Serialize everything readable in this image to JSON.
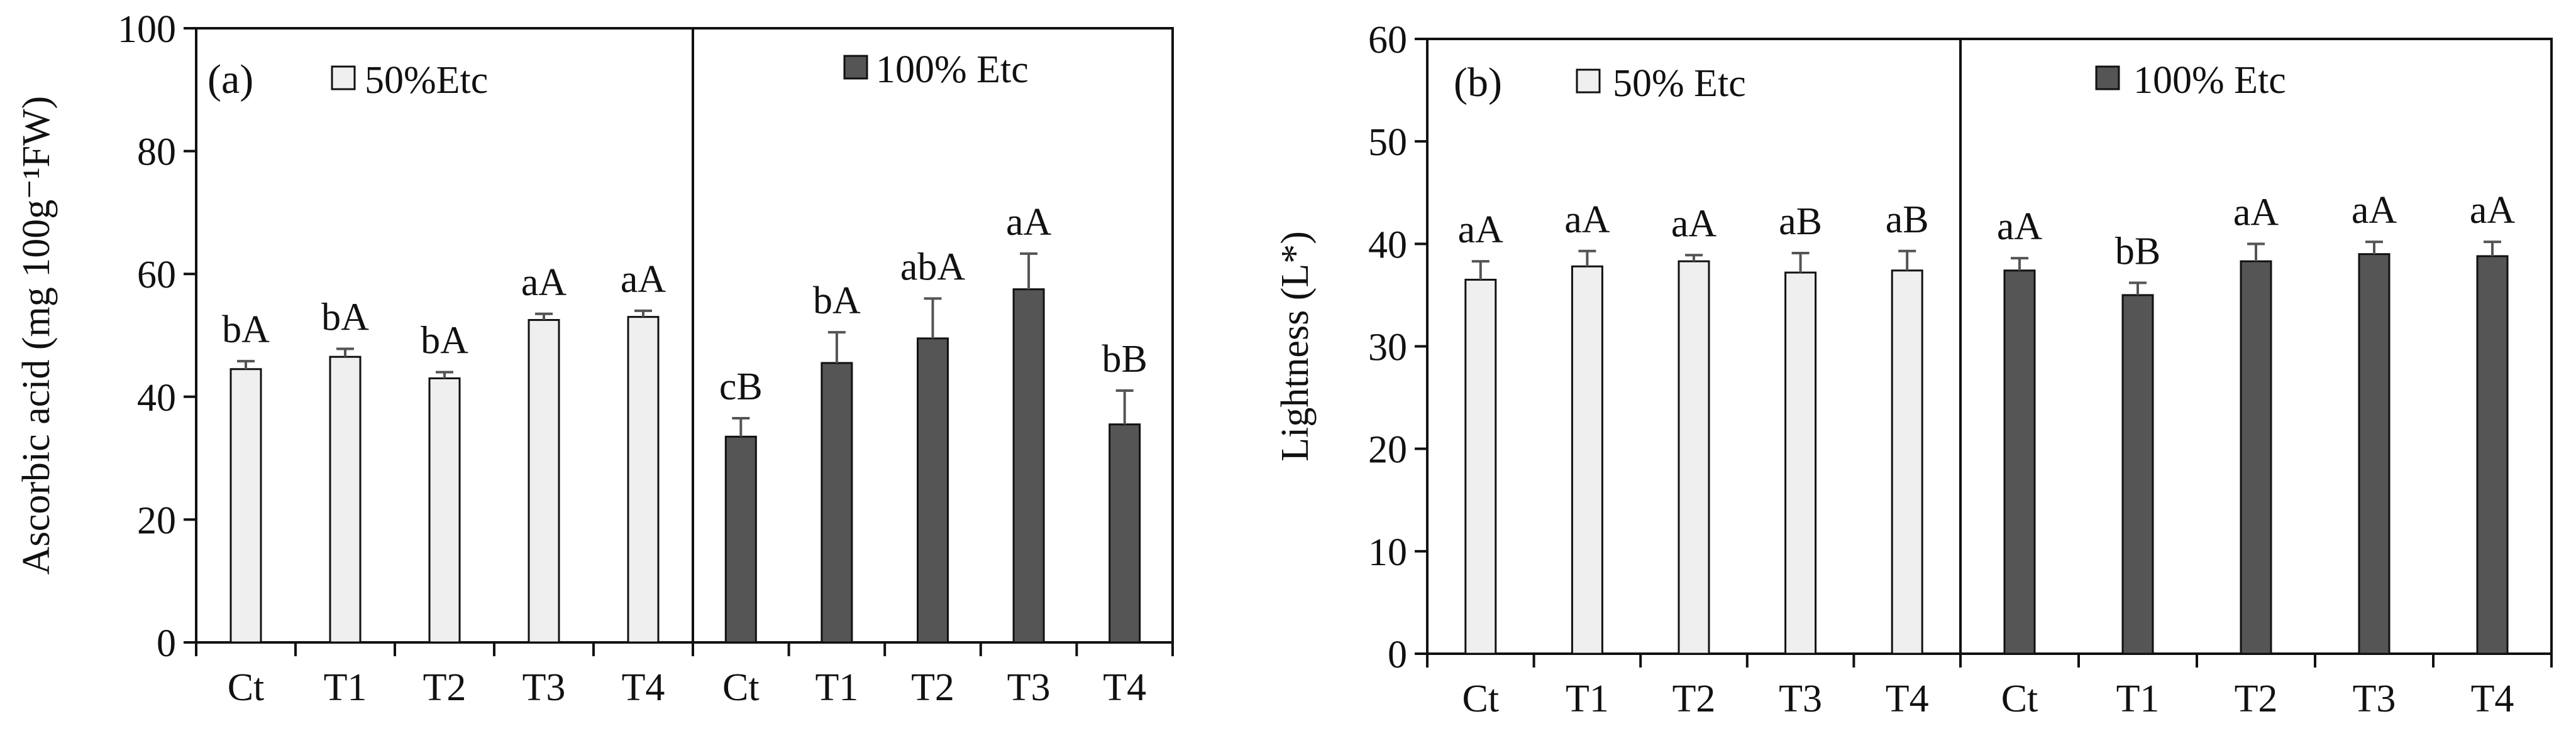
{
  "chart_data": [
    {
      "type": "bar",
      "panel_label": "(a)",
      "ylabel": "Ascorbic acid (mg 100g⁻¹FW)",
      "ylim": [
        0,
        100
      ],
      "yticks": [
        0,
        20,
        40,
        60,
        80,
        100
      ],
      "groups": [
        {
          "legend": "50%Etc",
          "color": "#efefef",
          "categories": [
            "Ct",
            "T1",
            "T2",
            "T3",
            "T4"
          ],
          "values": [
            44.5,
            46.5,
            43,
            52.5,
            53
          ],
          "errors": [
            1.3,
            1.3,
            1.0,
            1.0,
            1.0
          ],
          "letters": [
            "bA",
            "bA",
            "bA",
            "aA",
            "aA"
          ]
        },
        {
          "legend": "100% Etc",
          "color": "#555555",
          "categories": [
            "Ct",
            "T1",
            "T2",
            "T3",
            "T4"
          ],
          "values": [
            33.5,
            45.5,
            49.5,
            57.5,
            35.5
          ],
          "errors": [
            3.0,
            5.0,
            6.5,
            5.8,
            5.5
          ],
          "letters": [
            "cB",
            "bA",
            "abA",
            "aA",
            "bB"
          ]
        }
      ]
    },
    {
      "type": "bar",
      "panel_label": "(b)",
      "ylabel": "Lightness (L*)",
      "ylim": [
        0,
        60
      ],
      "yticks": [
        0,
        10,
        20,
        30,
        40,
        50,
        60
      ],
      "groups": [
        {
          "legend": "50% Etc",
          "color": "#efefef",
          "categories": [
            "Ct",
            "T1",
            "T2",
            "T3",
            "T4"
          ],
          "values": [
            36.5,
            37.8,
            38.3,
            37.2,
            37.4
          ],
          "errors": [
            1.8,
            1.5,
            0.6,
            1.9,
            1.9
          ],
          "letters": [
            "aA",
            "aA",
            "aA",
            "aB",
            "aB"
          ]
        },
        {
          "legend": "100% Etc",
          "color": "#555555",
          "categories": [
            "Ct",
            "T1",
            "T2",
            "T3",
            "T4"
          ],
          "values": [
            37.4,
            35.0,
            38.3,
            39.0,
            38.8
          ],
          "errors": [
            1.2,
            1.2,
            1.7,
            1.2,
            1.4
          ],
          "letters": [
            "aA",
            "bB",
            "aA",
            "aA",
            "aA"
          ]
        }
      ]
    }
  ]
}
